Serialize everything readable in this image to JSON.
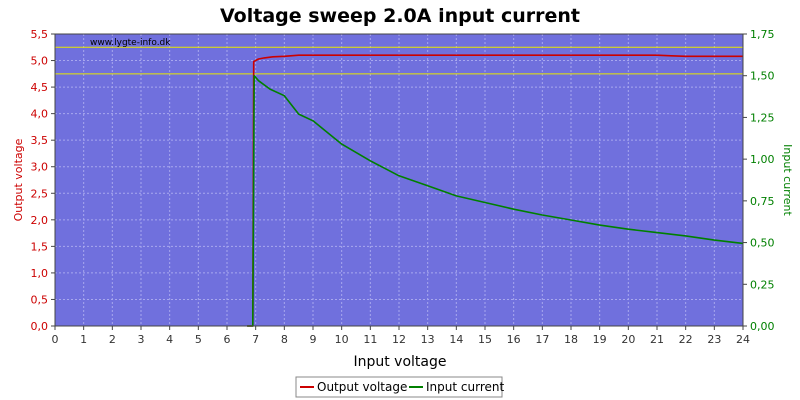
{
  "chart_data": {
    "type": "line",
    "title": "Voltage sweep 2.0A input current",
    "watermark": "www.lygte-info.dk",
    "xlabel": "Input voltage",
    "ylabel_left": "Output voltage",
    "ylabel_right": "Input current",
    "xlim": [
      0,
      24
    ],
    "ylim_left": [
      0,
      5.5
    ],
    "ylim_right": [
      0,
      1.75
    ],
    "x_ticks": [
      "0",
      "1",
      "2",
      "3",
      "4",
      "5",
      "6",
      "7",
      "8",
      "9",
      "10",
      "11",
      "12",
      "13",
      "14",
      "15",
      "16",
      "17",
      "18",
      "19",
      "20",
      "21",
      "22",
      "23",
      "24"
    ],
    "y_left_ticks": [
      "0,0",
      "0,5",
      "1,0",
      "1,5",
      "2,0",
      "2,5",
      "3,0",
      "3,5",
      "4,0",
      "4,5",
      "5,0",
      "5,5"
    ],
    "y_right_ticks": [
      "0,00",
      "0,25",
      "0,50",
      "0,75",
      "1,00",
      "1,25",
      "1,50",
      "1,75"
    ],
    "reference_lines_left": [
      5.25,
      4.75
    ],
    "grid": true,
    "legend_position": "bottom-center",
    "colors": {
      "plot_bg": "#7070dd",
      "grid": "#a8a8ee",
      "reference": "#e8e800",
      "output_voltage": "#cc0000",
      "input_current": "#008000"
    },
    "series": [
      {
        "name": "Output voltage",
        "axis": "left",
        "x": [
          6.7,
          6.9,
          6.93,
          7.0,
          7.1,
          7.3,
          7.6,
          8.0,
          8.5,
          10,
          14,
          18,
          21,
          21.5,
          22,
          24
        ],
        "y": [
          0.0,
          0.0,
          4.98,
          5.0,
          5.03,
          5.05,
          5.07,
          5.08,
          5.1,
          5.1,
          5.1,
          5.1,
          5.1,
          5.09,
          5.08,
          5.08
        ]
      },
      {
        "name": "Input current",
        "axis": "right",
        "x": [
          6.7,
          6.9,
          6.95,
          7.1,
          7.5,
          8,
          8.5,
          9,
          10,
          11,
          12,
          13,
          14,
          15,
          16,
          17,
          18,
          19,
          20,
          21,
          22,
          23,
          24
        ],
        "y": [
          0.0,
          0.0,
          1.5,
          1.47,
          1.42,
          1.38,
          1.27,
          1.23,
          1.09,
          0.99,
          0.9,
          0.84,
          0.78,
          0.74,
          0.7,
          0.665,
          0.635,
          0.605,
          0.58,
          0.56,
          0.54,
          0.515,
          0.495
        ]
      }
    ]
  }
}
